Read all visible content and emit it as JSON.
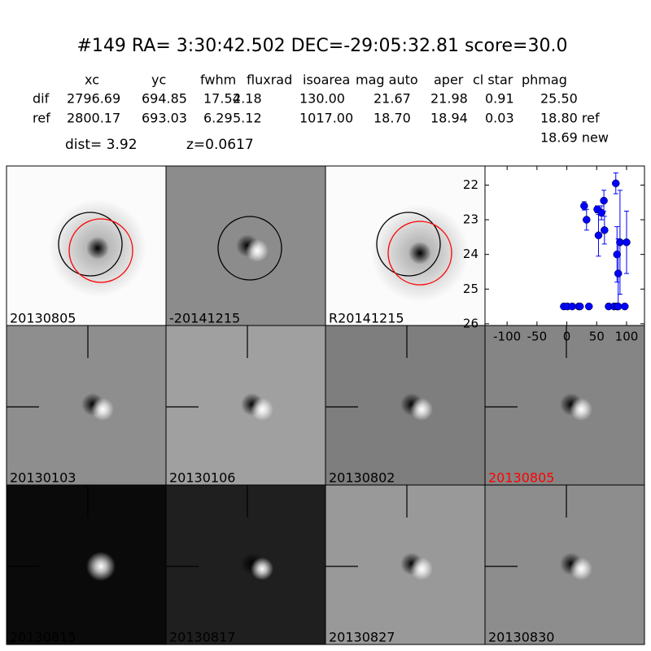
{
  "header": {
    "title": "#149   RA= 3:30:42.502 DEC=-29:05:32.81       score=30.0"
  },
  "table": {
    "columns": [
      "xc",
      "yc",
      "fwhm",
      "fluxrad",
      "isoarea",
      "mag auto",
      "aper",
      "cl star",
      "phmag"
    ],
    "rows": [
      [
        "dif",
        "2796.69",
        "694.85",
        "17.54",
        "2.18",
        "130.00",
        "21.67",
        "21.98",
        "0.91",
        "25.50"
      ],
      [
        "ref",
        "2800.17",
        "693.03",
        "6.29",
        "5.12",
        "1017.00",
        "18.70",
        "18.94",
        "0.03",
        "18.80 ref"
      ]
    ],
    "extra": "18.69 new"
  },
  "info": {
    "dist": "dist=  3.92",
    "z": "z=0.0617"
  },
  "panels": [
    {
      "label": "20130805"
    },
    {
      "label": "-20141215"
    },
    {
      "label": "R20141215"
    },
    {
      "label": "20130103"
    },
    {
      "label": "20130106"
    },
    {
      "label": "20130802"
    },
    {
      "label": "20130805",
      "label_color": "#ff0000"
    },
    {
      "label": "20130815"
    },
    {
      "label": "20130817"
    },
    {
      "label": "20130827"
    },
    {
      "label": "20130830"
    }
  ],
  "chart_data": {
    "type": "scatter",
    "color": "#0000ff",
    "x": [
      -5,
      1,
      9,
      20,
      22,
      37,
      70,
      79,
      84,
      86,
      97,
      29,
      33,
      51,
      53,
      58,
      62,
      63,
      82,
      84,
      86,
      89,
      100
    ],
    "values": [
      25.5,
      25.5,
      25.5,
      25.5,
      25.5,
      25.5,
      25.5,
      25.5,
      25.5,
      25.5,
      25.5,
      22.6,
      23.0,
      22.7,
      23.45,
      22.8,
      22.45,
      23.3,
      21.95,
      24.0,
      24.55,
      23.65,
      23.65
    ],
    "errors": [
      null,
      null,
      null,
      null,
      null,
      null,
      null,
      null,
      null,
      null,
      null,
      0.12,
      0.3,
      0.1,
      0.6,
      0.2,
      0.3,
      0.4,
      0.3,
      0.8,
      1.0,
      1.5,
      0.9
    ],
    "xlim": [
      -137,
      130
    ],
    "ylim": [
      21.45,
      26.05
    ],
    "y_inverted": true,
    "xticks": [
      -100,
      -50,
      0,
      50,
      100
    ],
    "yticks": [
      22,
      23,
      24,
      25,
      26
    ]
  }
}
